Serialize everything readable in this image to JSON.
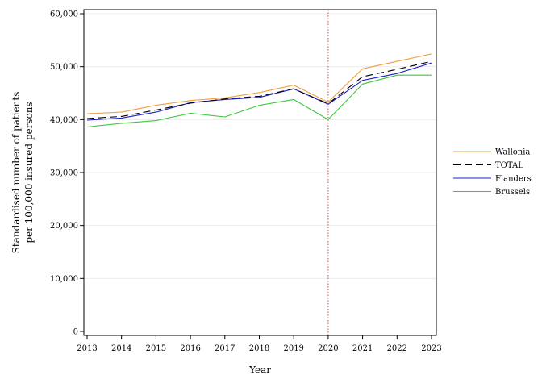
{
  "chart_data": {
    "type": "line",
    "title": "",
    "xlabel": "Year",
    "ylabel_lines": [
      "Standardised number of patients",
      "per 100,000 insured persons"
    ],
    "x": [
      2013,
      2014,
      2015,
      2016,
      2017,
      2018,
      2019,
      2020,
      2021,
      2022,
      2023
    ],
    "ylim": [
      0,
      60000
    ],
    "yticks": [
      0,
      10000,
      20000,
      30000,
      40000,
      50000,
      60000
    ],
    "ytick_labels": [
      "0",
      "10,000",
      "20,000",
      "30,000",
      "40,000",
      "50,000",
      "60,000"
    ],
    "grid": "horizontal",
    "legend_position": "right",
    "reference_line": {
      "x": 2020,
      "color": "#c0504d",
      "style": "dotted"
    },
    "series": [
      {
        "name": "Wallonia",
        "color": "#f0a040",
        "dash": "solid",
        "values": [
          41100,
          41400,
          42700,
          43600,
          44100,
          45100,
          46500,
          43300,
          49600,
          51000,
          52400
        ]
      },
      {
        "name": "TOTAL",
        "color": "#000000",
        "dash": "dashed",
        "values": [
          40200,
          40600,
          41800,
          43100,
          43900,
          44400,
          45800,
          43000,
          48100,
          49500,
          51000
        ]
      },
      {
        "name": "Flanders",
        "color": "#1f1fc8",
        "dash": "solid",
        "values": [
          39900,
          40300,
          41400,
          43200,
          43800,
          44200,
          45800,
          42900,
          47400,
          48700,
          50700
        ]
      },
      {
        "name": "Brussels",
        "color": "#3cc83c",
        "dash": "solid",
        "values": [
          38600,
          39300,
          39800,
          41200,
          40500,
          42700,
          43800,
          40000,
          46700,
          48400,
          48400
        ]
      }
    ]
  }
}
